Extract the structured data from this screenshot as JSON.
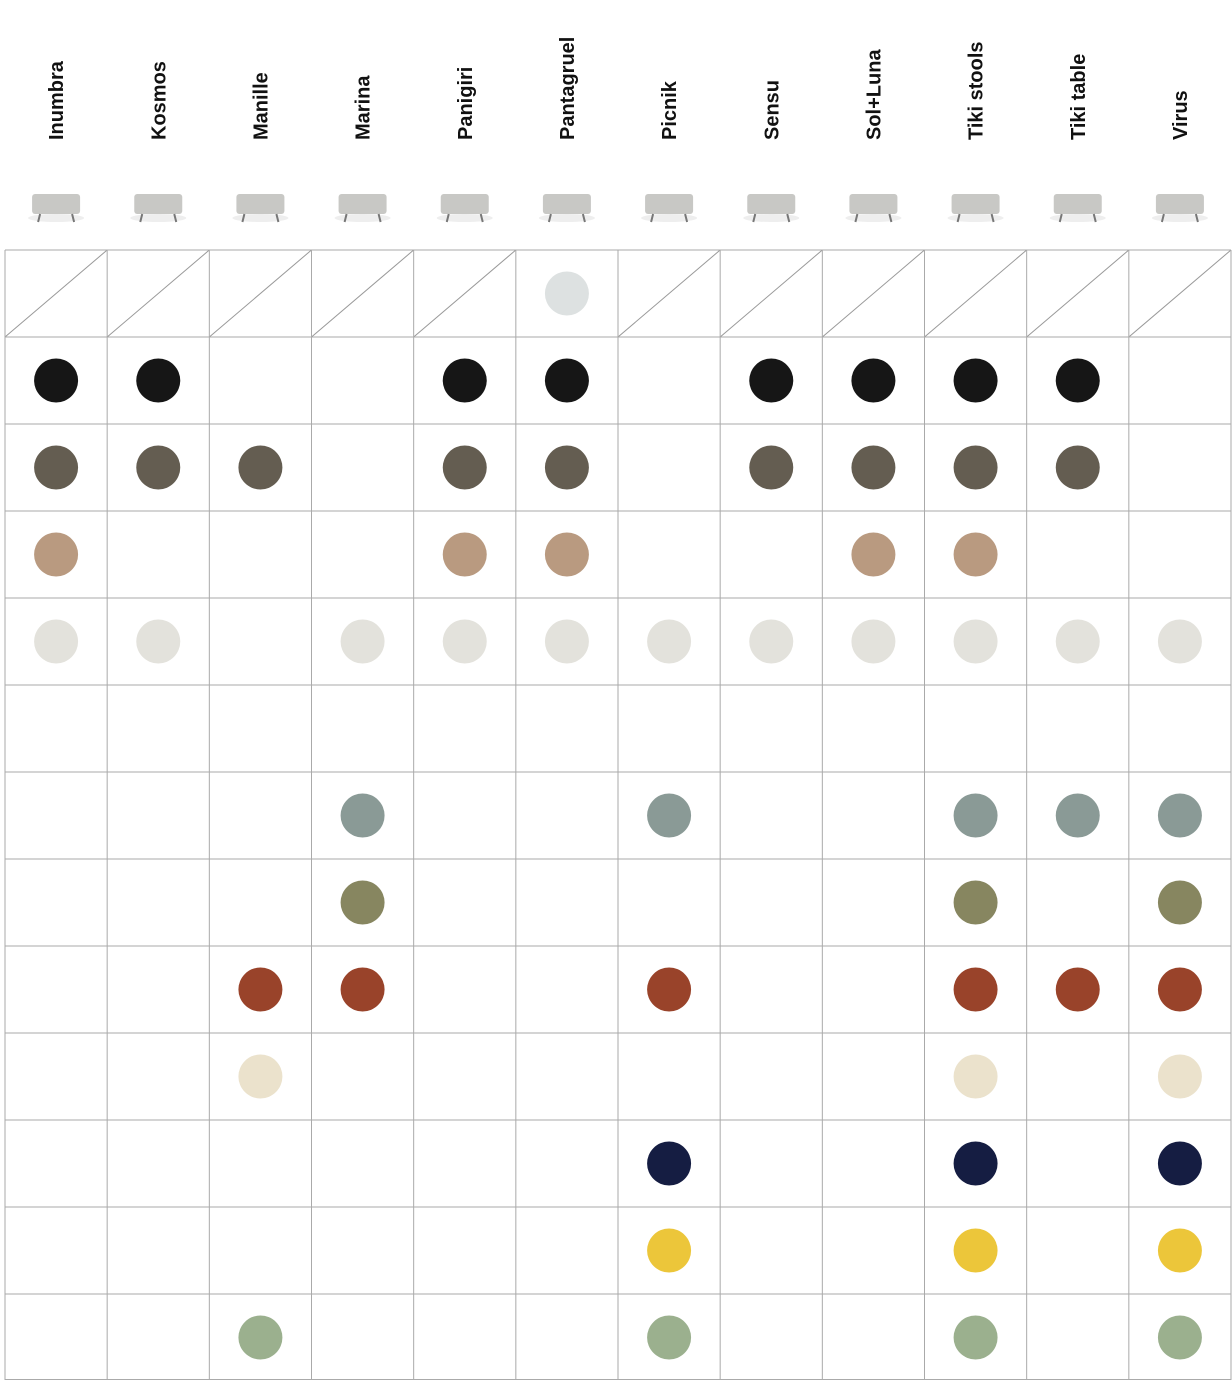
{
  "columns": [
    "Inumbra",
    "Kosmos",
    "Manille",
    "Marina",
    "Panigiri",
    "Pantagruel",
    "Picnik",
    "Sensu",
    "Sol+Luna",
    "Tiki stools",
    "Tiki table",
    "Virus"
  ],
  "rows": [
    {
      "color": "#dde1e1",
      "cells": [
        "slash",
        "slash",
        "slash",
        "slash",
        "slash",
        "dot",
        "slash",
        "slash",
        "slash",
        "slash",
        "slash",
        "slash"
      ]
    },
    {
      "color": "#161616",
      "cells": [
        "dot",
        "dot",
        null,
        null,
        "dot",
        "dot",
        null,
        "dot",
        "dot",
        "dot",
        "dot",
        null
      ]
    },
    {
      "color": "#645d51",
      "cells": [
        "dot",
        "dot",
        "dot",
        null,
        "dot",
        "dot",
        null,
        "dot",
        "dot",
        "dot",
        "dot",
        null
      ]
    },
    {
      "color": "#b99a80",
      "cells": [
        "dot",
        null,
        null,
        null,
        "dot",
        "dot",
        null,
        null,
        "dot",
        "dot",
        null,
        null
      ]
    },
    {
      "color": "#e3e2dc",
      "cells": [
        "dot",
        "dot",
        null,
        "dot",
        "dot",
        "dot",
        "dot",
        "dot",
        "dot",
        "dot",
        "dot",
        "dot"
      ]
    },
    {
      "color": null,
      "cells": [
        null,
        null,
        null,
        null,
        null,
        null,
        null,
        null,
        null,
        null,
        null,
        null
      ]
    },
    {
      "color": "#8a9a96",
      "cells": [
        null,
        null,
        null,
        "dot",
        null,
        null,
        "dot",
        null,
        null,
        "dot",
        "dot",
        "dot"
      ]
    },
    {
      "color": "#878660",
      "cells": [
        null,
        null,
        null,
        "dot",
        null,
        null,
        null,
        null,
        null,
        "dot",
        null,
        "dot"
      ]
    },
    {
      "color": "#99432a",
      "cells": [
        null,
        null,
        "dot",
        "dot",
        null,
        null,
        "dot",
        null,
        null,
        "dot",
        "dot",
        "dot"
      ]
    },
    {
      "color": "#ebe2cc",
      "cells": [
        null,
        null,
        "dot",
        null,
        null,
        null,
        null,
        null,
        null,
        "dot",
        null,
        "dot"
      ]
    },
    {
      "color": "#151d42",
      "cells": [
        null,
        null,
        null,
        null,
        null,
        null,
        "dot",
        null,
        null,
        "dot",
        null,
        "dot"
      ]
    },
    {
      "color": "#ecc63a",
      "cells": [
        null,
        null,
        null,
        null,
        null,
        null,
        "dot",
        null,
        null,
        "dot",
        null,
        "dot"
      ]
    },
    {
      "color": "#9bb08e",
      "cells": [
        null,
        null,
        "dot",
        null,
        null,
        null,
        "dot",
        null,
        null,
        "dot",
        null,
        "dot"
      ]
    }
  ]
}
